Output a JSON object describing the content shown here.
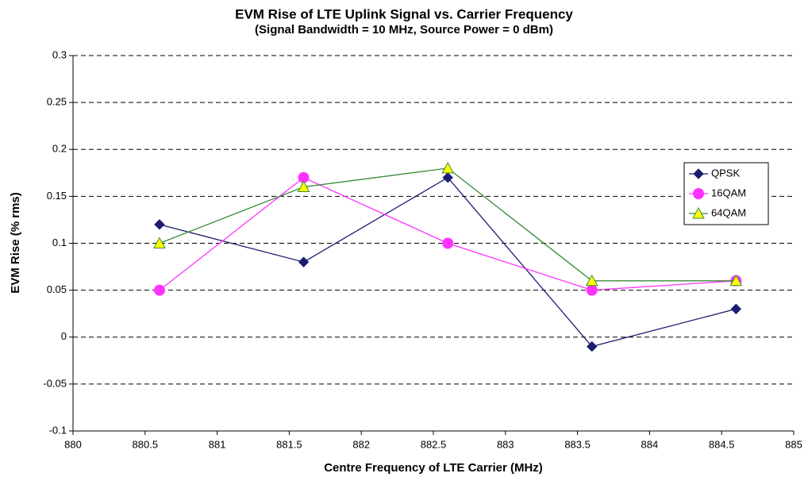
{
  "chart_data": {
    "type": "line",
    "title": "EVM Rise of LTE Uplink Signal vs. Carrier Frequency",
    "subtitle": "(Signal Bandwidth = 10 MHz, Source Power = 0 dBm)",
    "x_label": "Centre Frequency of LTE Carrier (MHz)",
    "y_label": "EVM Rise (% rms)",
    "x": [
      880.6,
      881.6,
      882.6,
      883.6,
      884.6
    ],
    "series": [
      {
        "name": "QPSK",
        "color": "#1c1c70",
        "marker": "diamond",
        "marker_fill": "#1c1c70",
        "values": [
          0.12,
          0.08,
          0.17,
          -0.01,
          0.03
        ]
      },
      {
        "name": "16QAM",
        "color": "#ff33ff",
        "marker": "circle",
        "marker_fill": "#ff33ff",
        "values": [
          0.05,
          0.17,
          0.1,
          0.05,
          0.06
        ]
      },
      {
        "name": "64QAM",
        "color": "#3a8a3a",
        "marker": "triangle",
        "marker_fill": "#ffff00",
        "values": [
          0.1,
          0.16,
          0.18,
          0.06,
          0.06
        ]
      }
    ],
    "xlim": [
      880,
      885
    ],
    "xticks": [
      880,
      880.5,
      881,
      881.5,
      882,
      882.5,
      883,
      883.5,
      884,
      884.5,
      885
    ],
    "ylim": [
      -0.1,
      0.3
    ],
    "yticks": [
      -0.1,
      -0.05,
      0,
      0.05,
      0.1,
      0.15,
      0.2,
      0.25,
      0.3
    ],
    "grid": true,
    "legend": "right"
  }
}
